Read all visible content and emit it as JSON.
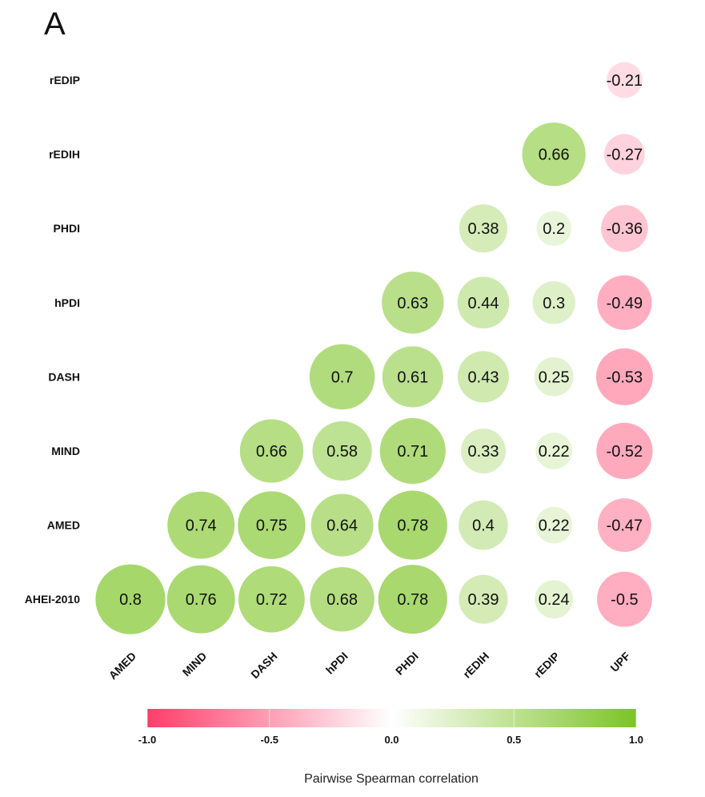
{
  "panel_label": "A",
  "chart_data": {
    "type": "heatmap",
    "subtype": "correlation-circle-matrix-lower-triangle",
    "title": "",
    "row_labels": [
      "rEDIP",
      "rEDIH",
      "PHDI",
      "hPDI",
      "DASH",
      "MIND",
      "AMED",
      "AHEI-2010"
    ],
    "col_labels": [
      "AMED",
      "MIND",
      "DASH",
      "hPDI",
      "PHDI",
      "rEDIH",
      "rEDIP",
      "UPF"
    ],
    "values": [
      [
        null,
        null,
        null,
        null,
        null,
        null,
        null,
        -0.21
      ],
      [
        null,
        null,
        null,
        null,
        null,
        null,
        0.66,
        -0.27
      ],
      [
        null,
        null,
        null,
        null,
        null,
        0.38,
        0.2,
        -0.36
      ],
      [
        null,
        null,
        null,
        null,
        0.63,
        0.44,
        0.3,
        -0.49
      ],
      [
        null,
        null,
        null,
        0.7,
        0.61,
        0.43,
        0.25,
        -0.53
      ],
      [
        null,
        null,
        0.66,
        0.58,
        0.71,
        0.33,
        0.22,
        -0.52
      ],
      [
        null,
        0.74,
        0.75,
        0.64,
        0.78,
        0.4,
        0.22,
        -0.47
      ],
      [
        0.8,
        0.76,
        0.72,
        0.68,
        0.78,
        0.39,
        0.24,
        -0.5
      ]
    ],
    "color_scale": {
      "min": -1.0,
      "max": 1.0,
      "negative_color": "#ff3d6a",
      "zero_color": "#ffffff",
      "positive_color": "#7cc424",
      "ticks": [
        "-1.0",
        "-0.5",
        "0.0",
        "0.5",
        "1.0"
      ],
      "tick_values": [
        -1.0,
        -0.5,
        0.0,
        0.5,
        1.0
      ],
      "title": "Pairwise Spearman correlation",
      "placement": "bottom"
    },
    "size_encodes": "absolute correlation"
  }
}
